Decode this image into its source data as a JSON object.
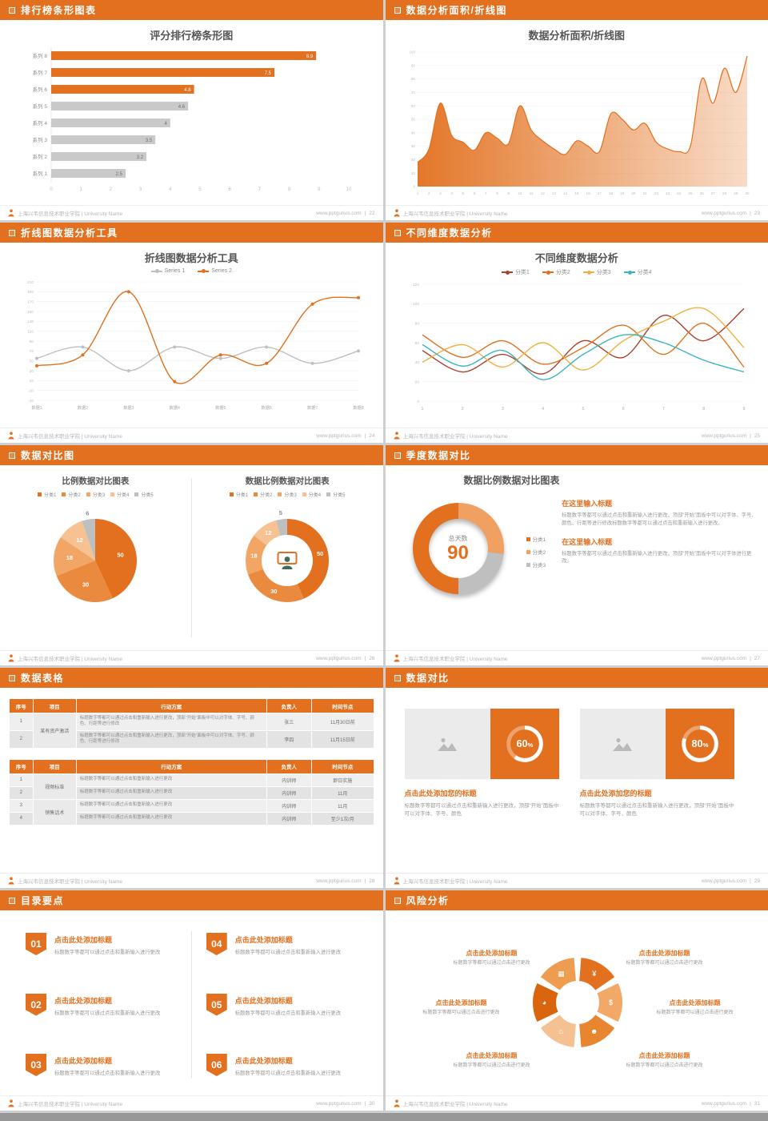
{
  "meta": {
    "accent": "#E2701E",
    "org": "上海兴韦信息技术职业学院 | University Name",
    "site": "www.pptgurius.com",
    "divider": "|"
  },
  "chart_data": [
    {
      "type": "bar",
      "orientation": "horizontal",
      "title": "评分排行榜条形图",
      "categories": [
        "系列 8",
        "系列 7",
        "系列 6",
        "系列 5",
        "系列 4",
        "系列 3",
        "系列 2",
        "系列 1"
      ],
      "values": [
        8.9,
        7.5,
        4.8,
        4.6,
        4,
        3.5,
        3.2,
        2.5
      ],
      "highlight_count": 3,
      "color": "#E2701E",
      "muted_color": "#C9C9C9",
      "xlim": [
        0,
        10
      ],
      "xticks": [
        0,
        1,
        2,
        3,
        4,
        5,
        6,
        7,
        8,
        9,
        10
      ]
    },
    {
      "type": "area",
      "title": "数据分析面积/折线图",
      "color": "#E2701E",
      "x": [
        1,
        2,
        3,
        4,
        5,
        6,
        7,
        8,
        9,
        10,
        11,
        12,
        13,
        14,
        15,
        16,
        17,
        18,
        19,
        20,
        21,
        22,
        23,
        24,
        25,
        26,
        27,
        28,
        29,
        30
      ],
      "values": [
        18,
        28,
        62,
        38,
        33,
        27,
        40,
        36,
        32,
        60,
        42,
        34,
        28,
        24,
        34,
        30,
        26,
        54,
        50,
        42,
        47,
        33,
        28,
        26,
        30,
        80,
        62,
        88,
        70,
        97
      ],
      "ylim": [
        0,
        100
      ],
      "yticks": [
        0,
        10,
        20,
        30,
        40,
        50,
        60,
        70,
        80,
        90,
        100
      ]
    },
    {
      "type": "line",
      "title": "折线图数据分析工具",
      "categories": [
        "数据1",
        "数据2",
        "数据3",
        "数据4",
        "数据5",
        "数据6",
        "数据7",
        "数据8"
      ],
      "series": [
        {
          "name": "Series 1",
          "color": "#BFBFBF",
          "values": [
            55,
            78,
            30,
            78,
            55,
            78,
            45,
            70
          ]
        },
        {
          "name": "Series 2",
          "color": "#E2701E",
          "values": [
            40,
            62,
            190,
            8,
            62,
            45,
            165,
            178
          ]
        }
      ],
      "markers": true,
      "ylim": [
        -30,
        210
      ],
      "ytick_step": 20
    },
    {
      "type": "line",
      "title": "不同维度数据分析",
      "x": [
        1,
        2,
        3,
        4,
        5,
        6,
        7,
        8,
        9
      ],
      "series": [
        {
          "name": "分类1",
          "color": "#A8432A",
          "values": [
            52,
            30,
            48,
            28,
            62,
            45,
            88,
            62,
            95
          ]
        },
        {
          "name": "分类2",
          "color": "#E2701E",
          "values": [
            68,
            45,
            62,
            38,
            55,
            78,
            48,
            80,
            35
          ]
        },
        {
          "name": "分类3",
          "color": "#EFB143",
          "values": [
            40,
            58,
            35,
            60,
            32,
            62,
            82,
            95,
            55
          ]
        },
        {
          "name": "分类4",
          "color": "#3AB5C0",
          "values": [
            58,
            36,
            52,
            22,
            48,
            68,
            60,
            42,
            30
          ]
        }
      ],
      "markers": false,
      "ylim": [
        0,
        120
      ],
      "ytick_step": 20
    },
    {
      "type": "pie",
      "title": "比例数据对比图表",
      "legend": [
        "分类1",
        "分类2",
        "分类3",
        "分类4",
        "分类5"
      ],
      "values": [
        50,
        30,
        18,
        12,
        6
      ],
      "colors": [
        "#E2701E",
        "#EA8A3E",
        "#F1A665",
        "#F7C291",
        "#BFBFBF"
      ]
    },
    {
      "type": "donut",
      "title": "数据比例数据对比图表",
      "legend": [
        "分类1",
        "分类2",
        "分类3",
        "分类4",
        "分类5"
      ],
      "values": [
        50,
        30,
        18,
        12,
        5
      ],
      "colors": [
        "#E2701E",
        "#EA8A3E",
        "#F1A665",
        "#F7C291",
        "#BFBFBF"
      ]
    },
    {
      "type": "donut",
      "title": "数据比例数据对比图表",
      "legend": [
        "分类1",
        "分类2",
        "分类3"
      ],
      "values": [
        50,
        27,
        23
      ],
      "colors": [
        "#E2701E",
        "#F0A061",
        "#BFBFBF"
      ],
      "center_label": "总天数",
      "center_value": "90",
      "show_labels": false,
      "rotate": 180
    },
    {
      "type": "progress",
      "values": [
        60,
        80
      ],
      "unit": "%"
    }
  ],
  "slides": [
    {
      "header": "排行榜条形图表",
      "page": "22"
    },
    {
      "header": "数据分析面积/折线图",
      "page": "23"
    },
    {
      "header": "折线图数据分析工具",
      "page": "24"
    },
    {
      "header": "不同维度数据分析",
      "page": "25"
    },
    {
      "header": "数据对比图",
      "page": "26"
    },
    {
      "header": "季度数据对比",
      "page": "27",
      "blocks": [
        {
          "heading": "在这里输入标题",
          "body": "标题数字等都可以通过点击和重新输入进行更改，顶部“开始”面板中可以对字体、字号、颜色、行距等进行修改标题数字等都可以通过点击和重新输入进行更改。"
        },
        {
          "heading": "在这里输入标题",
          "body": "标题数字等都可以通过点击和重新输入进行更改，顶部“开始”面板中可以对字体进行更改。"
        }
      ]
    },
    {
      "header": "数据表格",
      "page": "28",
      "table1": {
        "headers": [
          "序号",
          "项目",
          "行动方案",
          "负责人",
          "时间节点"
        ],
        "group": "某有资产激活",
        "rows": [
          {
            "no": "1",
            "plan": "标题数字等都可以通过点击和重新输入进行更改，顶部“开始”面板中可以对字体、字号、颜色、行距等进行修改",
            "owner": "张三",
            "time": "11月30日前"
          },
          {
            "no": "2",
            "plan": "标题数字等都可以通过点击和重新输入进行更改，顶部“开始”面板中可以对字体、字号、颜色、行距等进行修改",
            "owner": "李四",
            "time": "11月15日前"
          }
        ]
      },
      "table2": {
        "headers": [
          "序号",
          "项目",
          "行动方案",
          "负责人",
          "时间节点"
        ],
        "groups": [
          "视频标准",
          "销售话术"
        ],
        "rows": [
          {
            "no": "1",
            "plan": "标题数字等都可以通过点击和重新输入进行更改",
            "owner": "内训师",
            "time": "即日实施"
          },
          {
            "no": "2",
            "plan": "标题数字等都可以通过点击和重新输入进行更改",
            "owner": "内训师",
            "time": "11月"
          },
          {
            "no": "3",
            "plan": "标题数字等都可以通过点击和重新输入进行更改",
            "owner": "内训师",
            "time": "11月"
          },
          {
            "no": "4",
            "plan": "标题数字等都可以通过点击和重新输入进行更改",
            "owner": "内训师",
            "time": "至少1次/月"
          }
        ]
      }
    },
    {
      "header": "数据对比",
      "page": "29",
      "cards": [
        {
          "percent": 60,
          "heading": "点击此处添加您的标题",
          "body": "标题数字等都可以通过点击和重新输入进行更改，顶部“开始”面板中可以对字体、字号、颜色"
        },
        {
          "percent": 80,
          "heading": "点击此处添加您的标题",
          "body": "标题数字等都可以通过点击和重新输入进行更改，顶部“开始”面板中可以对字体、字号、颜色"
        }
      ]
    },
    {
      "header": "目录要点",
      "page": "30",
      "items": [
        {
          "num": "01",
          "heading": "点击此处添加标题",
          "body": "标题数字等都可以通过点击和重新输入进行更改"
        },
        {
          "num": "02",
          "heading": "点击此处添加标题",
          "body": "标题数字等都可以通过点击和重新输入进行更改"
        },
        {
          "num": "03",
          "heading": "点击此处添加标题",
          "body": "标题数字等都可以通过点击和重新输入进行更改"
        },
        {
          "num": "04",
          "heading": "点击此处添加标题",
          "body": "标题数字等都可以通过点击和重新输入进行更改"
        },
        {
          "num": "05",
          "heading": "点击此处添加标题",
          "body": "标题数字等都可以通过点击和重新输入进行更改"
        },
        {
          "num": "06",
          "heading": "点击此处添加标题",
          "body": "标题数字等都可以通过点击和重新输入进行更改"
        }
      ]
    },
    {
      "header": "风险分析",
      "page": "31",
      "colors": [
        "#E2701E",
        "#F2A866",
        "#E8862F",
        "#F6C192",
        "#D9660F",
        "#EE9C4F"
      ],
      "icons": [
        {
          "name": "money-bag-icon",
          "glyph": "¥"
        },
        {
          "name": "coins-icon",
          "glyph": "$"
        },
        {
          "name": "people-icon",
          "glyph": "☻"
        },
        {
          "name": "bank-icon",
          "glyph": "⌂"
        },
        {
          "name": "pie-chart-icon",
          "glyph": "◕"
        },
        {
          "name": "bar-chart-icon",
          "glyph": "▦"
        }
      ],
      "labels": [
        {
          "heading": "点击此处添加标题",
          "body": "标题数字等都可以通过点击进行更改"
        },
        {
          "heading": "点击此处添加标题",
          "body": "标题数字等都可以通过点击进行更改"
        },
        {
          "heading": "点击此处添加标题",
          "body": "标题数字等都可以通过点击进行更改"
        },
        {
          "heading": "点击此处添加标题",
          "body": "标题数字等都可以通过点击进行更改"
        },
        {
          "heading": "点击此处添加标题",
          "body": "标题数字等都可以通过点击进行更改"
        },
        {
          "heading": "点击此处添加标题",
          "body": "标题数字等都可以通过点击进行更改"
        }
      ]
    }
  ]
}
